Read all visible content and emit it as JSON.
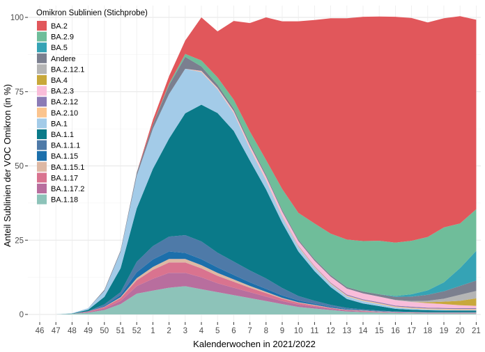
{
  "chart_data": {
    "type": "area",
    "stacked": true,
    "xlabel": "Kalenderwochen in 2021/2022",
    "ylabel": "Anteil Sublinien der VOC Omikron (in %)",
    "ylim": [
      0,
      100
    ],
    "yticks": [
      "0",
      "25",
      "50",
      "75",
      "100"
    ],
    "grid": true,
    "legend_title": "Omikron Sublinien (Stichprobe)",
    "legend_position": "top-left",
    "x": [
      "46",
      "47",
      "48",
      "49",
      "50",
      "51",
      "52",
      "1",
      "2",
      "3",
      "4",
      "5",
      "6",
      "7",
      "8",
      "9",
      "10",
      "11",
      "12",
      "13",
      "14",
      "15",
      "16",
      "17",
      "18",
      "19",
      "20",
      "21"
    ],
    "series": [
      {
        "name": "BA.1.18",
        "color": "#8dc3b9",
        "values": [
          0,
          0,
          0.2,
          0.6,
          1.5,
          3.5,
          7,
          8,
          9,
          9.5,
          8.5,
          7.5,
          6.5,
          5.5,
          4.5,
          3.5,
          2.5,
          2,
          1.5,
          1,
          0.8,
          0.6,
          0.5,
          0.4,
          0.3,
          0.3,
          0.3,
          0.3
        ]
      },
      {
        "name": "BA.1.17.2",
        "color": "#b86e9e",
        "values": [
          0,
          0,
          0,
          0.2,
          0.5,
          1,
          2.5,
          4,
          5,
          4.5,
          4,
          3,
          2.5,
          2,
          1.5,
          1,
          0.8,
          0.6,
          0.4,
          0.3,
          0.2,
          0.2,
          0.1,
          0.1,
          0.1,
          0.1,
          0.1,
          0.1
        ]
      },
      {
        "name": "BA.1.17",
        "color": "#d9738f",
        "values": [
          0,
          0,
          0,
          0.2,
          0.5,
          1,
          2,
          3,
          3.5,
          3.5,
          3,
          2.5,
          2,
          1.5,
          1.2,
          0.8,
          0.6,
          0.4,
          0.3,
          0.2,
          0.2,
          0.1,
          0.1,
          0.1,
          0.1,
          0.1,
          0.1,
          0.1
        ]
      },
      {
        "name": "BA.1.15.1",
        "color": "#ddb8a4",
        "values": [
          0,
          0,
          0,
          0,
          0.1,
          0.3,
          0.7,
          1,
          1.2,
          1.2,
          1.1,
          1,
          0.8,
          0.6,
          0.4,
          0.3,
          0.2,
          0.2,
          0.1,
          0.1,
          0.1,
          0.1,
          0.1,
          0.1,
          0.1,
          0.1,
          0.1,
          0.1
        ]
      },
      {
        "name": "BA.1.15",
        "color": "#1c6fab",
        "values": [
          0,
          0,
          0,
          0,
          0.3,
          0.7,
          2,
          2.5,
          2.5,
          2,
          2,
          1.8,
          1.5,
          1.2,
          1,
          0.8,
          0.6,
          0.4,
          0.3,
          0.2,
          0.1,
          0.1,
          0.1,
          0.1,
          0.1,
          0.1,
          0.1,
          0.1
        ]
      },
      {
        "name": "BA.1.1.1",
        "color": "#4e7aa8",
        "values": [
          0,
          0,
          0,
          0.1,
          0.5,
          1,
          3.5,
          4.5,
          5,
          6,
          6,
          5,
          4.5,
          4,
          3.5,
          2.5,
          1.5,
          1,
          0.6,
          0.4,
          0.3,
          0.2,
          0.1,
          0.1,
          0.1,
          0.1,
          0.1,
          0.1
        ]
      },
      {
        "name": "BA.1.1",
        "color": "#0a7a89",
        "values": [
          0,
          0,
          0.1,
          0.5,
          2.5,
          8,
          18,
          26,
          33,
          41,
          46,
          47,
          44,
          37,
          30,
          22,
          15,
          10,
          6,
          3,
          2,
          1.5,
          0.9,
          0.7,
          0.6,
          0.5,
          0.5,
          0.5
        ]
      },
      {
        "name": "BA.1",
        "color": "#a3cbe8",
        "values": [
          0,
          0,
          0.1,
          0.5,
          2,
          5.5,
          11,
          13.5,
          15,
          15,
          11,
          8,
          6,
          4,
          3,
          2,
          1.5,
          1.2,
          1,
          0.9,
          0.8,
          0.7,
          0.5,
          0.4,
          0.3,
          0.3,
          0.2,
          0.2
        ]
      },
      {
        "name": "BA.2.10",
        "color": "#fbc48e",
        "values": [
          0,
          0,
          0,
          0,
          0,
          0,
          0,
          0,
          0,
          0,
          0.2,
          0.2,
          0.2,
          0.3,
          0.3,
          0.3,
          0.3,
          0.3,
          0.3,
          0.3,
          0.3,
          0.3,
          0.3,
          0.3,
          0.3,
          0.3,
          0.3,
          0.3
        ]
      },
      {
        "name": "BA.2.12",
        "color": "#8b7bb6",
        "values": [
          0,
          0,
          0,
          0,
          0,
          0,
          0,
          0,
          0,
          0,
          0,
          0,
          0,
          0,
          0,
          0.1,
          0.2,
          0.2,
          0.2,
          0.3,
          0.3,
          0.3,
          0.3,
          0.3,
          0.3,
          0.3,
          0.3,
          0.3
        ]
      },
      {
        "name": "BA.2.3",
        "color": "#f9bdda",
        "values": [
          0,
          0,
          0,
          0,
          0,
          0,
          0,
          0,
          0,
          0,
          0.2,
          0.3,
          0.5,
          0.8,
          1,
          1.3,
          1.5,
          1.8,
          2,
          2,
          2,
          1.9,
          1.8,
          1.6,
          1.5,
          1.3,
          1,
          0.8
        ]
      },
      {
        "name": "BA.4",
        "color": "#c8a83a",
        "values": [
          0,
          0,
          0,
          0,
          0,
          0,
          0,
          0,
          0,
          0,
          0,
          0,
          0,
          0,
          0,
          0,
          0,
          0,
          0,
          0,
          0,
          0,
          0,
          0,
          0.3,
          0.8,
          1.5,
          2.5
        ]
      },
      {
        "name": "BA.2.12.1",
        "color": "#b5b5b5",
        "values": [
          0,
          0,
          0,
          0,
          0,
          0,
          0,
          0,
          0,
          0,
          0,
          0,
          0,
          0,
          0,
          0,
          0,
          0,
          0,
          0,
          0,
          0,
          0.1,
          0.3,
          0.5,
          1,
          2,
          2.5
        ]
      },
      {
        "name": "Andere",
        "color": "#7b7f8f",
        "values": [
          0,
          0,
          0,
          0,
          0.4,
          0.5,
          1,
          1.5,
          3,
          4,
          1.5,
          1,
          0.8,
          0.7,
          0.6,
          0.6,
          0.5,
          0.5,
          0.5,
          0.5,
          0.6,
          0.8,
          1,
          1.5,
          2,
          2.5,
          3,
          3.5
        ]
      },
      {
        "name": "BA.5",
        "color": "#35a3b5",
        "values": [
          0,
          0,
          0,
          0,
          0,
          0,
          0,
          0,
          0,
          0,
          0,
          0,
          0,
          0,
          0,
          0,
          0,
          0,
          0,
          0,
          0,
          0,
          0.3,
          0.8,
          1.5,
          3,
          6,
          10
        ]
      },
      {
        "name": "BA.2.9",
        "color": "#6fbd9a",
        "values": [
          0,
          0,
          0,
          0,
          0,
          0,
          0,
          0,
          0.5,
          1,
          2,
          2.5,
          3,
          4,
          5,
          7,
          9,
          12,
          14,
          16,
          17,
          18,
          18,
          18,
          18,
          18.5,
          15,
          14
        ]
      },
      {
        "name": "BA.2",
        "color": "#e1575b",
        "values": [
          0,
          0,
          0,
          0,
          0,
          0,
          0,
          1.5,
          2.5,
          4.5,
          14.5,
          15.5,
          26.5,
          36.5,
          48,
          56.5,
          64.5,
          68.5,
          72.5,
          74.5,
          75.5,
          75.5,
          76,
          75,
          72.2,
          70.4,
          69.8,
          63.8
        ]
      }
    ]
  }
}
